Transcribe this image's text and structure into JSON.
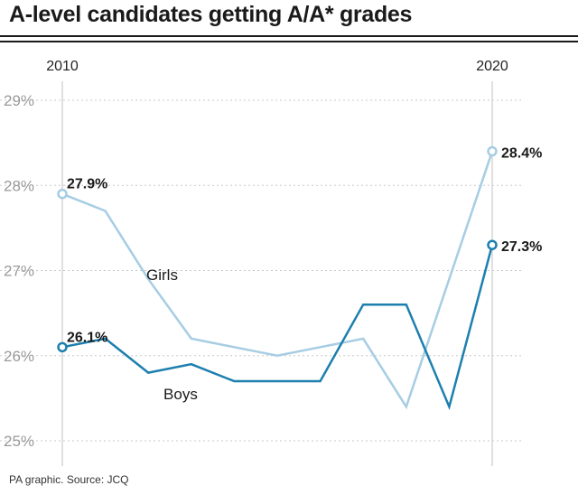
{
  "title": "A-level candidates getting A/A* grades",
  "source": "PA graphic. Source: JCQ",
  "chart_data": {
    "type": "line",
    "x": [
      2010,
      2011,
      2012,
      2013,
      2014,
      2015,
      2016,
      2017,
      2018,
      2019,
      2020
    ],
    "x_tick_labels": [
      {
        "x": 2010,
        "label": "2010"
      },
      {
        "x": 2020,
        "label": "2020"
      }
    ],
    "y_ticks": [
      {
        "value": 25,
        "label": "25%"
      },
      {
        "value": 26,
        "label": "26%"
      },
      {
        "value": 27,
        "label": "27%"
      },
      {
        "value": 28,
        "label": "28%"
      },
      {
        "value": 29,
        "label": "29%"
      }
    ],
    "ylim": [
      24.9,
      29.2
    ],
    "grid": true,
    "series": [
      {
        "name": "Girls",
        "color": "#a6cde3",
        "values": [
          27.9,
          27.7,
          26.9,
          26.2,
          26.1,
          26.0,
          26.1,
          26.2,
          25.4,
          28.4
        ],
        "x": [
          2010,
          2011,
          2012,
          2013,
          2014,
          2015,
          2016,
          2017,
          2018,
          2020
        ],
        "labels": [
          {
            "x": 2010,
            "text": "27.9%"
          },
          {
            "x": 2020,
            "text": "28.4%"
          }
        ]
      },
      {
        "name": "Boys",
        "color": "#1d7fae",
        "values": [
          26.1,
          26.2,
          25.8,
          25.9,
          25.7,
          25.7,
          25.7,
          26.6,
          26.6,
          25.4,
          27.3
        ],
        "x": [
          2010,
          2011,
          2012,
          2013,
          2014,
          2015,
          2016,
          2017,
          2018,
          2019,
          2020
        ],
        "labels": [
          {
            "x": 2010,
            "text": "26.1%"
          },
          {
            "x": 2020,
            "text": "27.3%"
          }
        ]
      }
    ]
  }
}
